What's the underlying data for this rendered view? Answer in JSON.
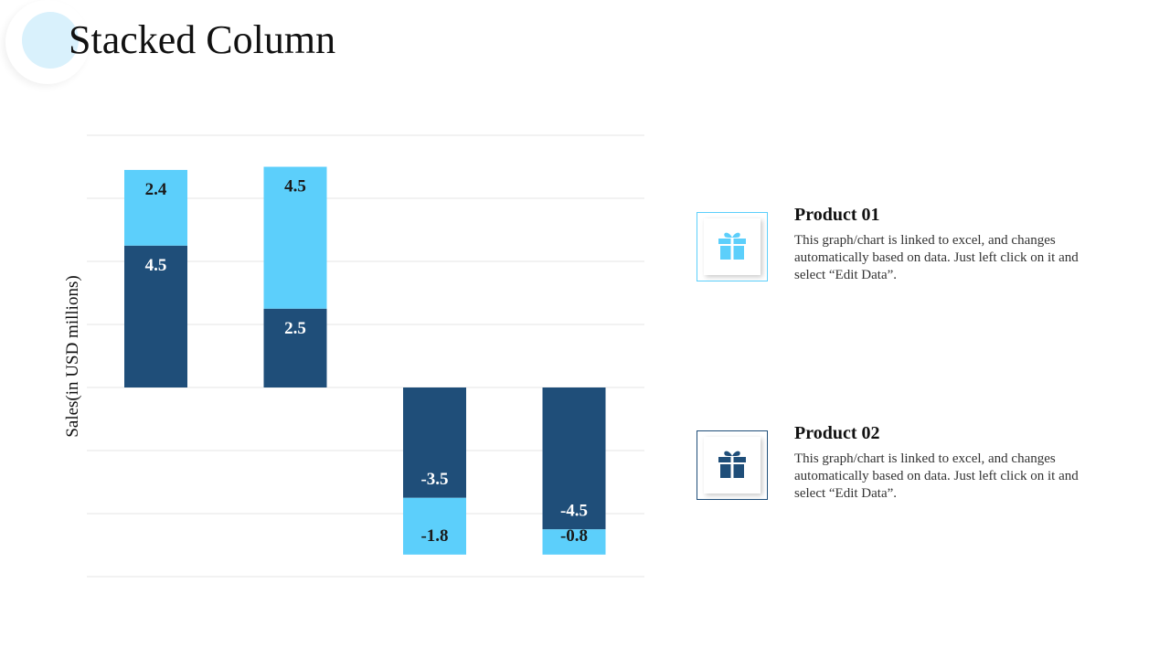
{
  "page": {
    "title": "Stacked Column"
  },
  "colors": {
    "product_01": "#5ccffb",
    "product_02": "#1f4e79",
    "gridline": "#e6e6e6",
    "title_circle": "#d9f1fc"
  },
  "legend": [
    {
      "name": "Product 01",
      "icon": "gift-icon",
      "description": "This graph/chart is linked to excel, and changes automatically based on data. Just left click on it and select “Edit Data”."
    },
    {
      "name": "Product 02",
      "icon": "gift-icon",
      "description": "This graph/chart is linked to excel, and changes automatically based on data. Just left click on it and select “Edit Data”."
    }
  ],
  "chart_data": {
    "type": "bar",
    "stacked": true,
    "title": "",
    "xlabel": "",
    "ylabel": "Sales(in USD millions)",
    "ylim": [
      -6,
      8
    ],
    "grid": true,
    "legend_position": "right",
    "categories": [
      "",
      "",
      "",
      ""
    ],
    "series": [
      {
        "name": "Product 02",
        "color": "#1f4e79",
        "values": [
          4.5,
          2.5,
          -3.5,
          -4.5
        ]
      },
      {
        "name": "Product 01",
        "color": "#5ccffb",
        "values": [
          2.4,
          4.5,
          -1.8,
          -0.8
        ]
      }
    ]
  }
}
